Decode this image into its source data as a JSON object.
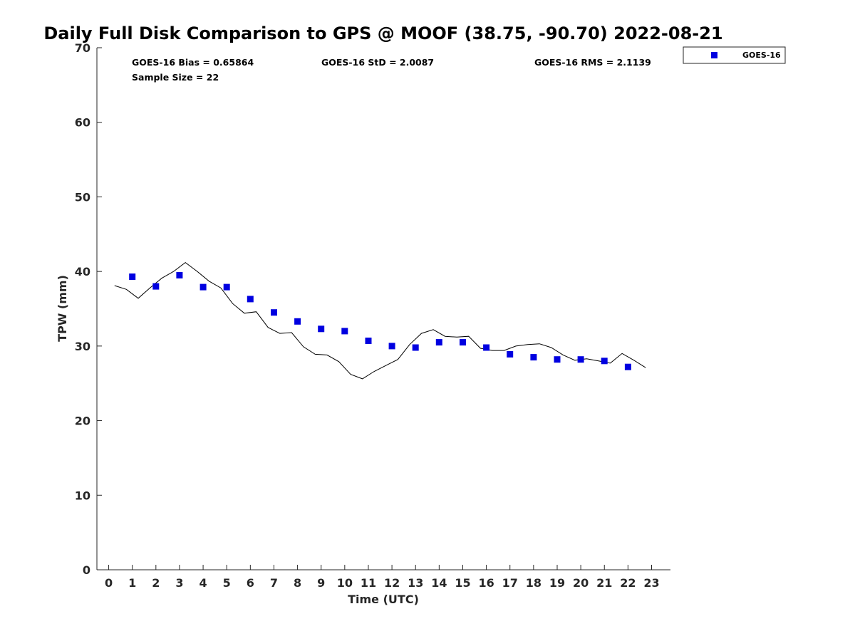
{
  "chart_data": {
    "type": "scatter",
    "title": "Daily Full Disk Comparison to GPS @ MOOF (38.75, -90.70) 2022-08-21",
    "xlabel": "Time (UTC)",
    "ylabel": "TPW (mm)",
    "xlim": [
      -0.5,
      23.8
    ],
    "ylim": [
      0,
      70
    ],
    "xticks": [
      "0",
      "1",
      "2",
      "3",
      "4",
      "5",
      "6",
      "7",
      "8",
      "9",
      "10",
      "11",
      "12",
      "13",
      "14",
      "15",
      "16",
      "17",
      "18",
      "19",
      "20",
      "21",
      "22",
      "23"
    ],
    "yticks": [
      "0",
      "10",
      "20",
      "30",
      "40",
      "50",
      "60",
      "70"
    ],
    "legend_position": "top-right",
    "stats": {
      "bias": "GOES-16 Bias = 0.65864",
      "std": "GOES-16 StD = 2.0087",
      "rms": "GOES-16 RMS = 2.1139",
      "sample_size": "Sample Size = 22"
    },
    "series": [
      {
        "name": "GOES-16",
        "kind": "scatter",
        "color": "#0000e0",
        "marker": "square",
        "x": [
          1,
          2,
          3,
          4,
          5,
          6,
          7,
          8,
          9,
          10,
          11,
          12,
          13,
          14,
          15,
          16,
          17,
          18,
          19,
          20,
          21,
          22
        ],
        "y": [
          39.3,
          38.0,
          39.5,
          37.9,
          37.9,
          36.3,
          34.5,
          33.3,
          32.3,
          32.0,
          30.7,
          30.0,
          29.8,
          30.5,
          30.5,
          29.8,
          28.9,
          28.5,
          28.2,
          28.2,
          28.0,
          27.2
        ]
      },
      {
        "name": "GPS",
        "kind": "line",
        "color": "#000000",
        "x": [
          0.25,
          0.75,
          1.25,
          1.75,
          2.25,
          2.75,
          3.25,
          3.75,
          4.25,
          4.75,
          5.25,
          5.75,
          6.25,
          6.75,
          7.25,
          7.75,
          8.25,
          8.75,
          9.25,
          9.75,
          10.25,
          10.75,
          11.25,
          11.75,
          12.25,
          12.75,
          13.25,
          13.75,
          14.25,
          14.75,
          15.25,
          15.75,
          16.25,
          16.75,
          17.25,
          17.75,
          18.25,
          18.75,
          19.25,
          19.75,
          20.25,
          20.75,
          21.25,
          21.75,
          22.25,
          22.75
        ],
        "y": [
          38.1,
          37.6,
          36.4,
          37.8,
          39.1,
          40.0,
          41.2,
          40.0,
          38.7,
          37.8,
          35.7,
          34.4,
          34.6,
          32.5,
          31.7,
          31.8,
          29.9,
          28.9,
          28.8,
          27.9,
          26.2,
          25.6,
          26.6,
          27.4,
          28.2,
          30.2,
          31.7,
          32.2,
          31.3,
          31.2,
          31.3,
          29.7,
          29.4,
          29.4,
          30.0,
          30.2,
          30.3,
          29.8,
          28.8,
          28.1,
          28.3,
          28.0,
          27.7,
          29.0,
          28.1,
          27.1
        ]
      }
    ]
  }
}
